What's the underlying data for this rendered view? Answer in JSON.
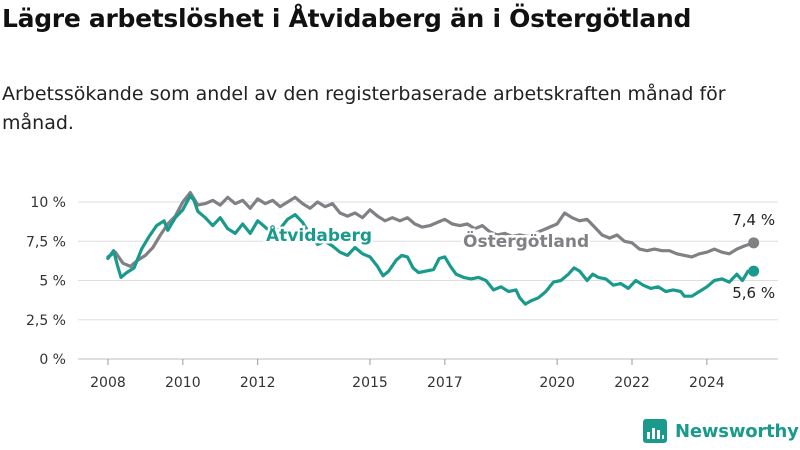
{
  "title": "Lägre arbetslöshet i Åtvidaberg än i Östergötland",
  "subtitle": "Arbetssökande som andel av den registerbaserade arbetskraften månad för månad.",
  "brand": {
    "name": "Newsworthy",
    "icon": "newsworthy-chart-logo-icon",
    "color": "#1a9a8c"
  },
  "chart_data": {
    "type": "line",
    "title": "Lägre arbetslöshet i Åtvidaberg än i Östergötland",
    "subtitle": "Arbetssökande som andel av den registerbaserade arbetskraften månad för månad.",
    "x_unit": "year",
    "xlim": [
      2007.2,
      2025.9
    ],
    "ylim": [
      0,
      10
    ],
    "y_ticks": [
      0,
      2.5,
      5,
      7.5,
      10
    ],
    "y_tick_labels": [
      "0 %",
      "2,5 %",
      "5 %",
      "7,5 %",
      "10 %"
    ],
    "x_ticks": [
      2008,
      2010,
      2012,
      2015,
      2017,
      2020,
      2022,
      2024
    ],
    "x_tick_labels": [
      "2008",
      "2010",
      "2012",
      "2015",
      "2017",
      "2020",
      "2022",
      "2024"
    ],
    "grid": true,
    "legend": "direct labels on lines",
    "series": [
      {
        "name": "Östergötland",
        "color": "#808085",
        "end_label": "7,4 %",
        "points": [
          [
            2008.0,
            6.5
          ],
          [
            2008.2,
            6.8
          ],
          [
            2008.4,
            6.1
          ],
          [
            2008.6,
            5.9
          ],
          [
            2008.8,
            6.3
          ],
          [
            2009.0,
            6.6
          ],
          [
            2009.2,
            7.1
          ],
          [
            2009.4,
            7.9
          ],
          [
            2009.6,
            8.6
          ],
          [
            2009.8,
            9.1
          ],
          [
            2010.0,
            10.0
          ],
          [
            2010.2,
            10.6
          ],
          [
            2010.4,
            9.8
          ],
          [
            2010.6,
            9.9
          ],
          [
            2010.8,
            10.1
          ],
          [
            2011.0,
            9.8
          ],
          [
            2011.2,
            10.3
          ],
          [
            2011.4,
            9.9
          ],
          [
            2011.6,
            10.1
          ],
          [
            2011.8,
            9.6
          ],
          [
            2012.0,
            10.2
          ],
          [
            2012.2,
            9.9
          ],
          [
            2012.4,
            10.1
          ],
          [
            2012.6,
            9.7
          ],
          [
            2012.8,
            10.0
          ],
          [
            2013.0,
            10.3
          ],
          [
            2013.2,
            9.9
          ],
          [
            2013.4,
            9.6
          ],
          [
            2013.6,
            10.0
          ],
          [
            2013.8,
            9.7
          ],
          [
            2014.0,
            9.9
          ],
          [
            2014.2,
            9.3
          ],
          [
            2014.4,
            9.1
          ],
          [
            2014.6,
            9.3
          ],
          [
            2014.8,
            9.0
          ],
          [
            2015.0,
            9.5
          ],
          [
            2015.2,
            9.1
          ],
          [
            2015.4,
            8.8
          ],
          [
            2015.6,
            9.0
          ],
          [
            2015.8,
            8.8
          ],
          [
            2016.0,
            9.0
          ],
          [
            2016.2,
            8.6
          ],
          [
            2016.4,
            8.4
          ],
          [
            2016.6,
            8.5
          ],
          [
            2016.8,
            8.7
          ],
          [
            2017.0,
            8.9
          ],
          [
            2017.2,
            8.6
          ],
          [
            2017.4,
            8.5
          ],
          [
            2017.6,
            8.6
          ],
          [
            2017.8,
            8.3
          ],
          [
            2018.0,
            8.5
          ],
          [
            2018.2,
            8.1
          ],
          [
            2018.4,
            7.9
          ],
          [
            2018.6,
            8.0
          ],
          [
            2018.8,
            7.8
          ],
          [
            2019.0,
            7.9
          ],
          [
            2019.2,
            7.8
          ],
          [
            2019.4,
            8.0
          ],
          [
            2019.6,
            8.2
          ],
          [
            2019.8,
            8.4
          ],
          [
            2020.0,
            8.6
          ],
          [
            2020.2,
            9.3
          ],
          [
            2020.4,
            9.0
          ],
          [
            2020.6,
            8.8
          ],
          [
            2020.8,
            8.9
          ],
          [
            2021.0,
            8.4
          ],
          [
            2021.2,
            7.9
          ],
          [
            2021.4,
            7.7
          ],
          [
            2021.6,
            7.9
          ],
          [
            2021.8,
            7.5
          ],
          [
            2022.0,
            7.4
          ],
          [
            2022.2,
            7.0
          ],
          [
            2022.4,
            6.9
          ],
          [
            2022.6,
            7.0
          ],
          [
            2022.8,
            6.9
          ],
          [
            2023.0,
            6.9
          ],
          [
            2023.2,
            6.7
          ],
          [
            2023.4,
            6.6
          ],
          [
            2023.6,
            6.5
          ],
          [
            2023.8,
            6.7
          ],
          [
            2024.0,
            6.8
          ],
          [
            2024.2,
            7.0
          ],
          [
            2024.4,
            6.8
          ],
          [
            2024.6,
            6.7
          ],
          [
            2024.8,
            7.0
          ],
          [
            2025.0,
            7.2
          ],
          [
            2025.25,
            7.4
          ]
        ]
      },
      {
        "name": "Åtvidaberg",
        "color": "#1a9a8c",
        "end_label": "5,6 %",
        "points": [
          [
            2008.0,
            6.4
          ],
          [
            2008.15,
            6.9
          ],
          [
            2008.25,
            6.0
          ],
          [
            2008.35,
            5.2
          ],
          [
            2008.5,
            5.5
          ],
          [
            2008.7,
            5.8
          ],
          [
            2008.9,
            7.0
          ],
          [
            2009.1,
            7.8
          ],
          [
            2009.3,
            8.5
          ],
          [
            2009.5,
            8.8
          ],
          [
            2009.6,
            8.2
          ],
          [
            2009.8,
            9.0
          ],
          [
            2010.0,
            9.5
          ],
          [
            2010.2,
            10.4
          ],
          [
            2010.3,
            10.1
          ],
          [
            2010.4,
            9.4
          ],
          [
            2010.6,
            9.0
          ],
          [
            2010.8,
            8.5
          ],
          [
            2011.0,
            9.0
          ],
          [
            2011.2,
            8.3
          ],
          [
            2011.4,
            8.0
          ],
          [
            2011.6,
            8.6
          ],
          [
            2011.8,
            8.0
          ],
          [
            2012.0,
            8.8
          ],
          [
            2012.2,
            8.4
          ],
          [
            2012.4,
            8.0
          ],
          [
            2012.6,
            8.3
          ],
          [
            2012.8,
            8.9
          ],
          [
            2013.0,
            9.2
          ],
          [
            2013.2,
            8.7
          ],
          [
            2013.4,
            7.9
          ],
          [
            2013.6,
            7.3
          ],
          [
            2013.8,
            7.5
          ],
          [
            2014.0,
            7.2
          ],
          [
            2014.2,
            6.8
          ],
          [
            2014.4,
            6.6
          ],
          [
            2014.6,
            7.1
          ],
          [
            2014.8,
            6.7
          ],
          [
            2015.0,
            6.5
          ],
          [
            2015.2,
            5.9
          ],
          [
            2015.35,
            5.3
          ],
          [
            2015.5,
            5.6
          ],
          [
            2015.7,
            6.3
          ],
          [
            2015.85,
            6.6
          ],
          [
            2016.0,
            6.5
          ],
          [
            2016.15,
            5.8
          ],
          [
            2016.3,
            5.5
          ],
          [
            2016.5,
            5.6
          ],
          [
            2016.7,
            5.7
          ],
          [
            2016.85,
            6.4
          ],
          [
            2017.0,
            6.5
          ],
          [
            2017.15,
            5.9
          ],
          [
            2017.3,
            5.4
          ],
          [
            2017.5,
            5.2
          ],
          [
            2017.7,
            5.1
          ],
          [
            2017.9,
            5.2
          ],
          [
            2018.1,
            5.0
          ],
          [
            2018.3,
            4.4
          ],
          [
            2018.5,
            4.6
          ],
          [
            2018.7,
            4.3
          ],
          [
            2018.9,
            4.4
          ],
          [
            2019.0,
            3.9
          ],
          [
            2019.15,
            3.5
          ],
          [
            2019.3,
            3.7
          ],
          [
            2019.5,
            3.9
          ],
          [
            2019.7,
            4.3
          ],
          [
            2019.9,
            4.9
          ],
          [
            2020.1,
            5.0
          ],
          [
            2020.3,
            5.4
          ],
          [
            2020.45,
            5.8
          ],
          [
            2020.6,
            5.6
          ],
          [
            2020.8,
            5.0
          ],
          [
            2020.95,
            5.4
          ],
          [
            2021.1,
            5.2
          ],
          [
            2021.3,
            5.1
          ],
          [
            2021.5,
            4.7
          ],
          [
            2021.7,
            4.8
          ],
          [
            2021.9,
            4.5
          ],
          [
            2022.1,
            5.0
          ],
          [
            2022.3,
            4.7
          ],
          [
            2022.5,
            4.5
          ],
          [
            2022.7,
            4.6
          ],
          [
            2022.9,
            4.3
          ],
          [
            2023.1,
            4.4
          ],
          [
            2023.3,
            4.3
          ],
          [
            2023.4,
            4.0
          ],
          [
            2023.6,
            4.0
          ],
          [
            2023.8,
            4.3
          ],
          [
            2024.0,
            4.6
          ],
          [
            2024.2,
            5.0
          ],
          [
            2024.4,
            5.1
          ],
          [
            2024.6,
            4.9
          ],
          [
            2024.8,
            5.4
          ],
          [
            2024.95,
            5.0
          ],
          [
            2025.1,
            5.6
          ],
          [
            2025.25,
            5.6
          ]
        ]
      }
    ]
  }
}
